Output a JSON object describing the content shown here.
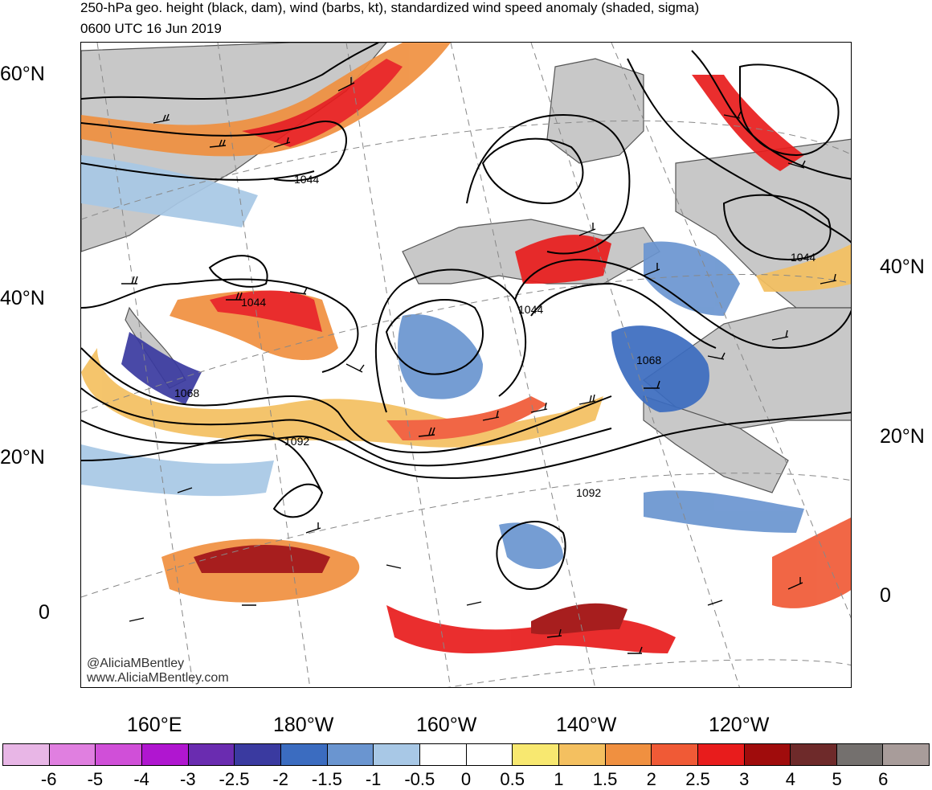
{
  "title": "250-hPa geo. height (black, dam), wind (barbs, kt), standardized wind speed anomaly (shaded, sigma)",
  "subtitle": "0600 UTC 16 Jun 2019",
  "credit": {
    "handle": "@AliciaMBentley",
    "site": "www.AliciaMBentley.com"
  },
  "lat_labels_left": [
    "60°N",
    "40°N",
    "20°N",
    "0"
  ],
  "lat_labels_right": [
    "40°N",
    "20°N",
    "0"
  ],
  "lon_labels": [
    "160°E",
    "180°W",
    "160°W",
    "140°W",
    "120°W"
  ],
  "contour_labels": [
    "1044",
    "1044",
    "1044",
    "1044",
    "1068",
    "1068",
    "1092",
    "1092"
  ],
  "colorbar": {
    "ticks": [
      "-6",
      "-5",
      "-4",
      "-3",
      "-2.5",
      "-2",
      "-1.5",
      "-1",
      "-0.5",
      "0",
      "0.5",
      "1",
      "1.5",
      "2",
      "2.5",
      "3",
      "4",
      "5",
      "6"
    ],
    "colors": [
      "#e8b6e6",
      "#e07fe0",
      "#d04fd8",
      "#b016d0",
      "#6a2cb0",
      "#3a3aa0",
      "#3b6cc0",
      "#6a95d0",
      "#a8c8e6",
      "#ffffff",
      "#ffffff",
      "#f8e870",
      "#f4c060",
      "#f09040",
      "#f05a36",
      "#e81c1c",
      "#a00c0c",
      "#6e2a2a",
      "#74706e",
      "#a89c9a"
    ]
  },
  "colors": {
    "land": "#c8c8c8",
    "coast": "#555555",
    "contour": "#000000",
    "grid": "#888888"
  }
}
